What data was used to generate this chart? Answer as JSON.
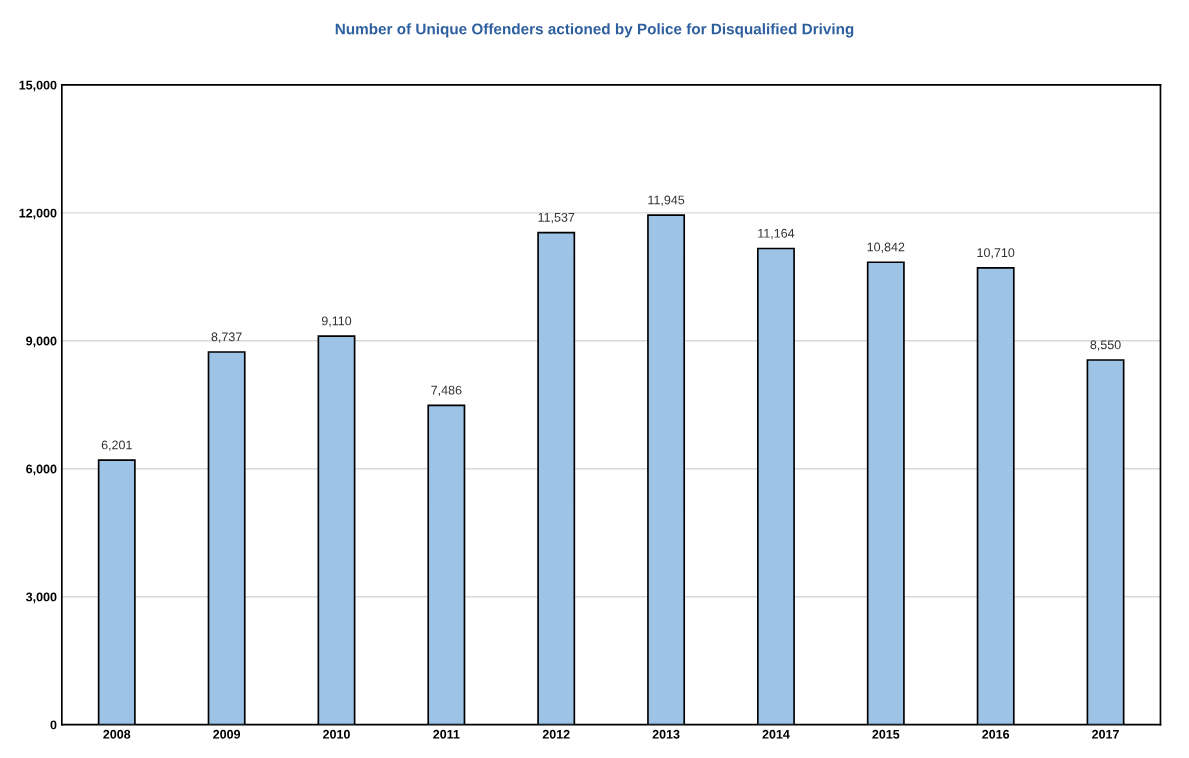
{
  "chart_data": {
    "type": "bar",
    "title": "Number of Unique Offenders actioned by Police for Disqualified Driving",
    "categories": [
      "2008",
      "2009",
      "2010",
      "2011",
      "2012",
      "2013",
      "2014",
      "2015",
      "2016",
      "2017"
    ],
    "values": [
      6201,
      8737,
      9110,
      7486,
      11537,
      11945,
      11164,
      10842,
      10710,
      8550
    ],
    "color": "#9dc3e6",
    "value_labels": [
      "6,201",
      "8,737",
      "9,110",
      "7,486",
      "11,537",
      "11,945",
      "11,164",
      "10,842",
      "10,710",
      "8,550"
    ],
    "ylim": [
      0,
      15000
    ],
    "yticks": [
      {
        "value": 0,
        "label": "0"
      },
      {
        "value": 3000,
        "label": "3,000"
      },
      {
        "value": 6000,
        "label": "6,000"
      },
      {
        "value": 9000,
        "label": "9,000"
      },
      {
        "value": 12000,
        "label": "12,000"
      },
      {
        "value": 15000,
        "label": "15,000"
      }
    ],
    "grid": "y"
  }
}
